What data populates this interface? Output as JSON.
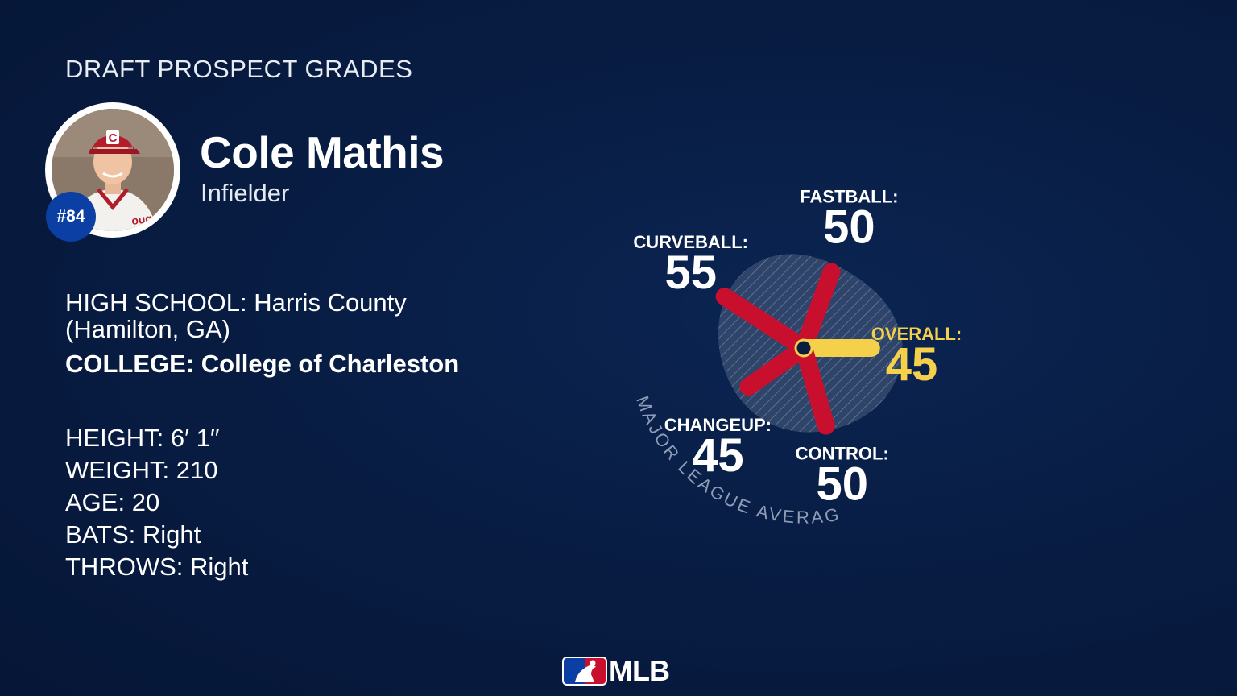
{
  "header": {
    "title": "DRAFT PROSPECT GRADES"
  },
  "player": {
    "name": "Cole Mathis",
    "position": "Infielder",
    "number": "#84"
  },
  "education": {
    "high_school_label": "HIGH SCHOOL:",
    "high_school_value": "Harris County (Hamilton, GA)",
    "college_label": "COLLEGE:",
    "college_value": "College of Charleston"
  },
  "stats": [
    {
      "label": "HEIGHT:",
      "value": "6′ 1′′"
    },
    {
      "label": "WEIGHT:",
      "value": "210"
    },
    {
      "label": "AGE:",
      "value": "20"
    },
    {
      "label": "BATS:",
      "value": "Right"
    },
    {
      "label": "THROWS:",
      "value": "Right"
    }
  ],
  "chart_data": {
    "type": "radial-bar",
    "average_label": "MAJOR LEAGUE AVERAGE",
    "average_value": 50,
    "scale": [
      20,
      80
    ],
    "categories": [
      {
        "name": "FASTBALL:",
        "value": 50,
        "angle_deg": -70,
        "color": "#c8102e"
      },
      {
        "name": "OVERALL:",
        "value": 45,
        "angle_deg": 0,
        "color": "#f5d04a"
      },
      {
        "name": "CONTROL:",
        "value": 50,
        "angle_deg": 74,
        "color": "#c8102e"
      },
      {
        "name": "CHANGEUP:",
        "value": 45,
        "angle_deg": 145,
        "color": "#c8102e"
      },
      {
        "name": "CURVEBALL:",
        "value": 55,
        "angle_deg": 213,
        "color": "#c8102e"
      }
    ]
  },
  "colors": {
    "background": "#081d44",
    "bar_red": "#c8102e",
    "bar_overall": "#f5d04a",
    "average_fill": "#3f5478",
    "badge_blue": "#0b3fa3"
  },
  "logo": {
    "text": "MLB"
  }
}
